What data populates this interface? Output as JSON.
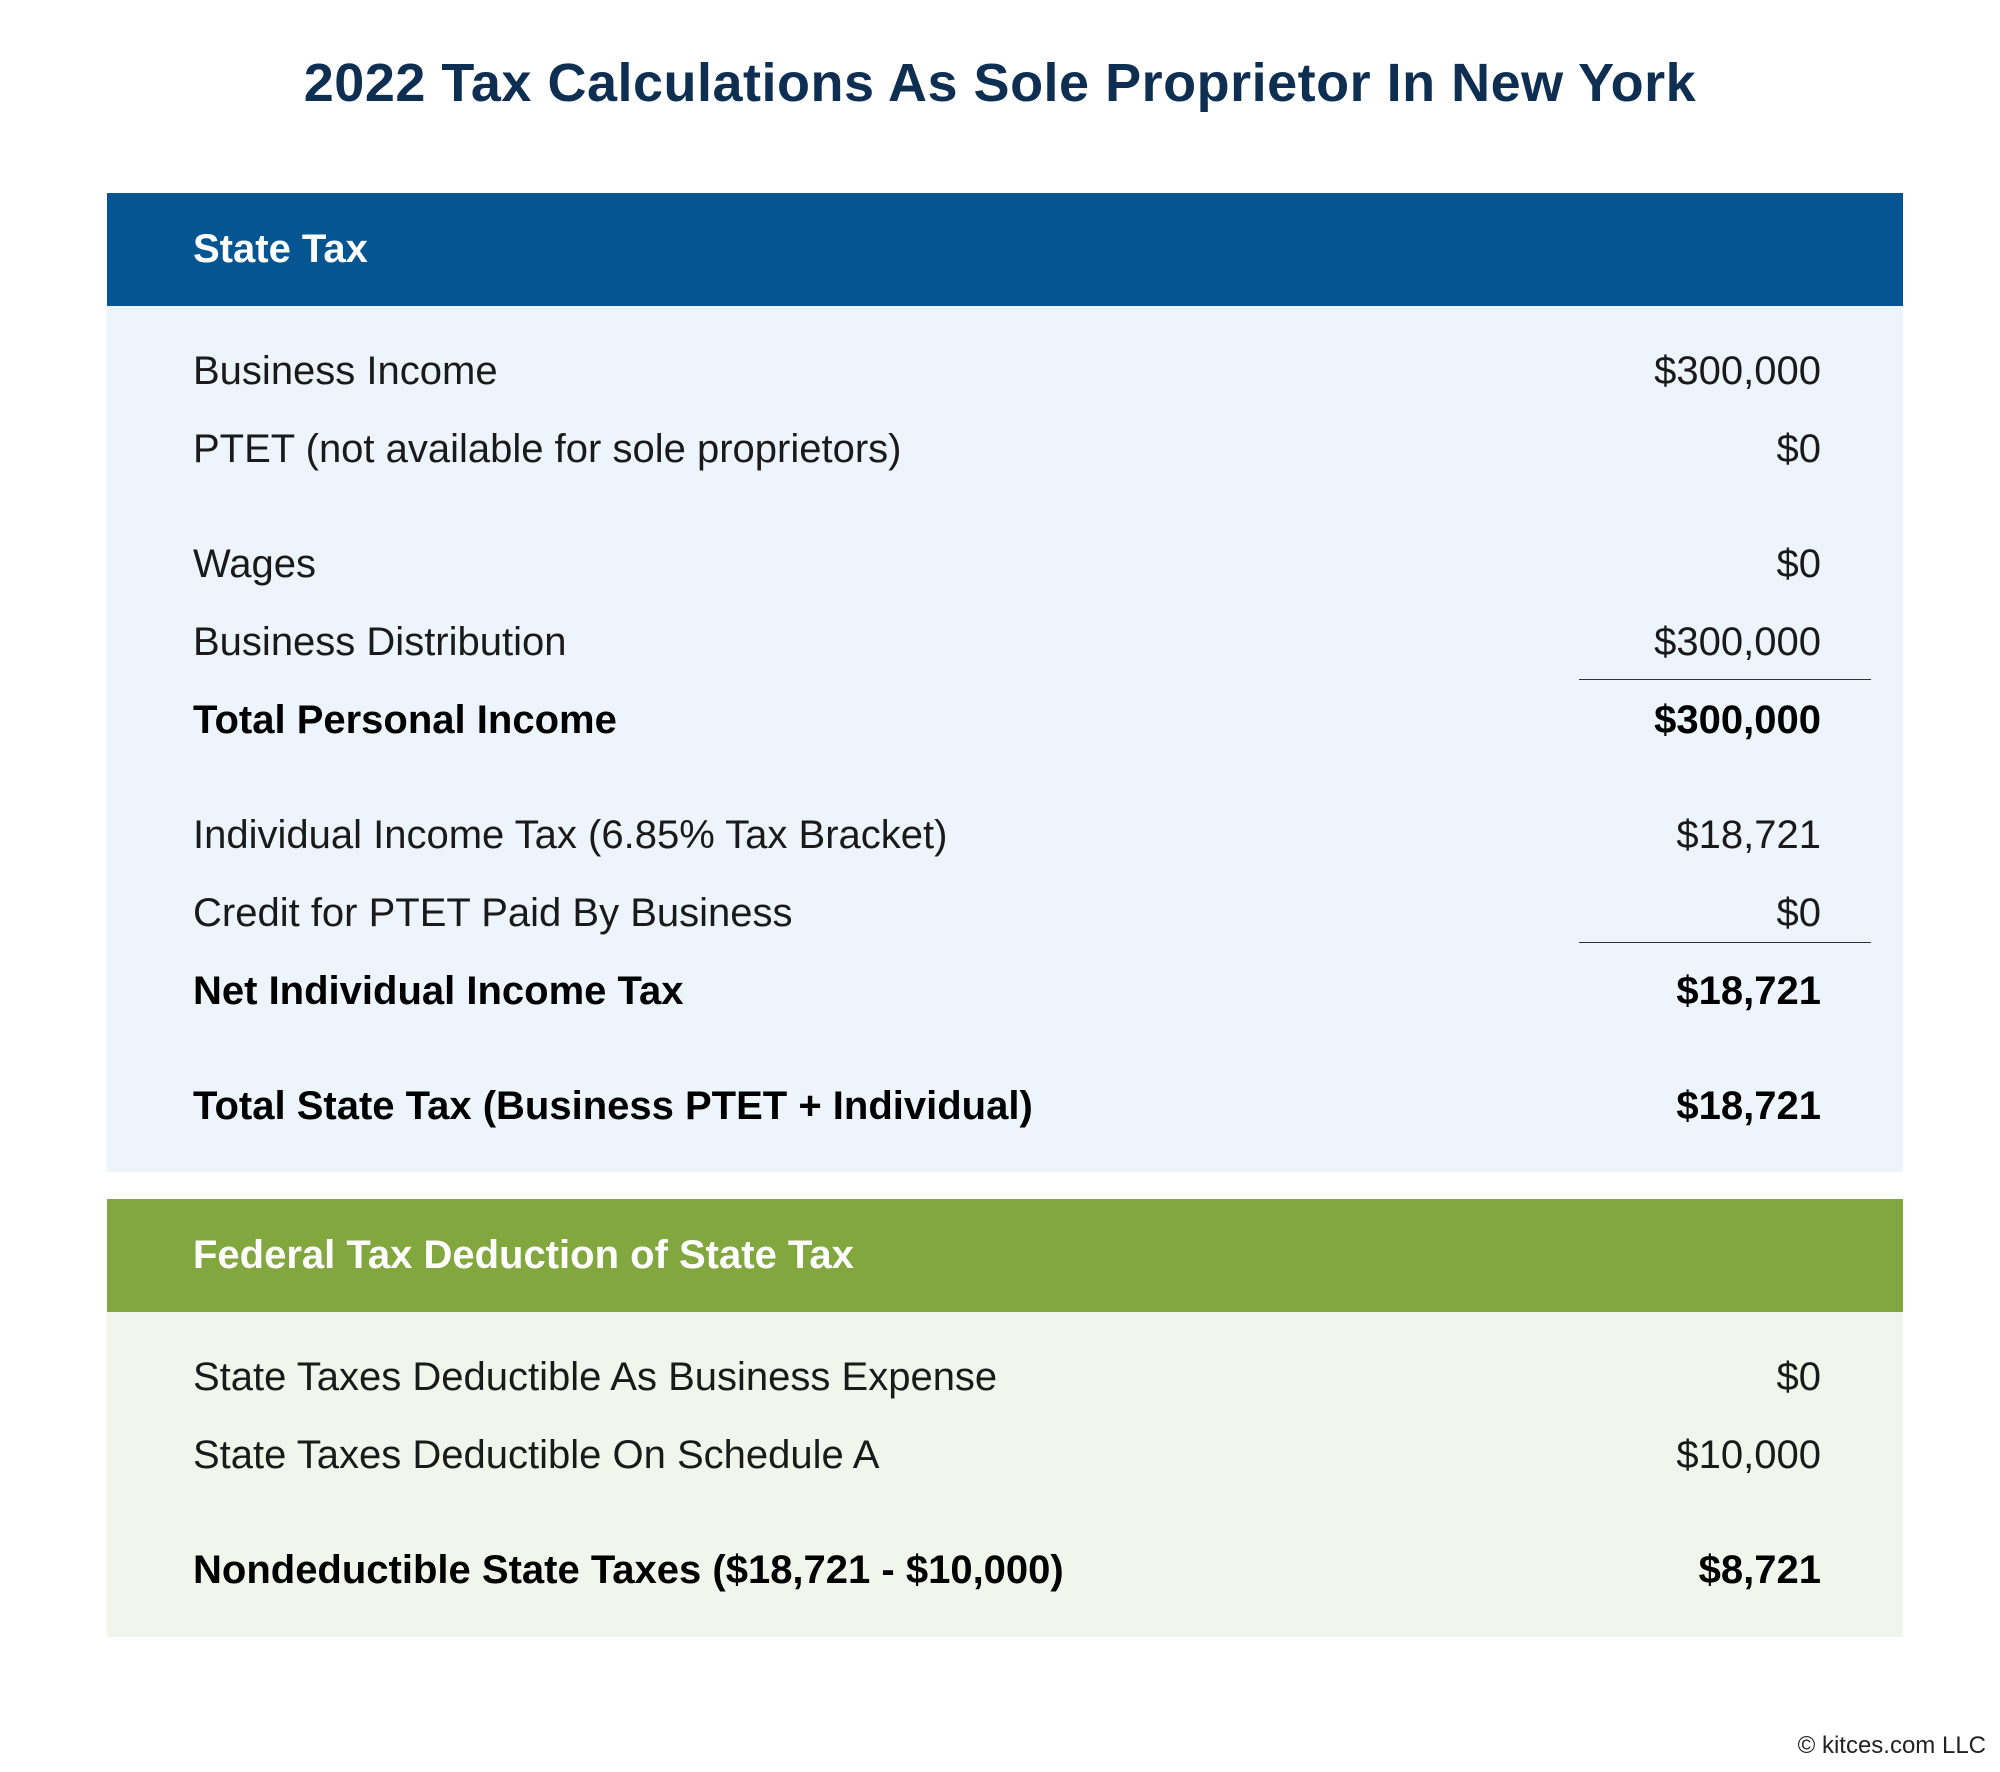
{
  "title": "2022 Tax Calculations As Sole Proprietor In New York",
  "state_tax": {
    "header": "State Tax",
    "rows": [
      {
        "label": "Business Income",
        "value": "$300,000"
      },
      {
        "label": "PTET (not available for sole proprietors)",
        "value": "$0"
      },
      {
        "label": "Wages",
        "value": "$0"
      },
      {
        "label": "Business Distribution",
        "value": "$300,000"
      },
      {
        "label": "Total Personal Income",
        "value": "$300,000"
      },
      {
        "label": "Individual Income Tax (6.85% Tax Bracket)",
        "value": "$18,721"
      },
      {
        "label": "Credit for PTET Paid By Business",
        "value": "$0"
      },
      {
        "label": "Net Individual Income Tax",
        "value": "$18,721"
      },
      {
        "label": "Total State Tax (Business PTET + Individual)",
        "value": "$18,721"
      }
    ]
  },
  "federal": {
    "header": "Federal Tax Deduction of State Tax",
    "rows": [
      {
        "label": "State Taxes Deductible As Business Expense",
        "value": "$0"
      },
      {
        "label": "State Taxes Deductible On Schedule A",
        "value": "$10,000"
      },
      {
        "label": "Nondeductible State Taxes ($18,721 - $10,000)",
        "value": "$8,721"
      }
    ]
  },
  "footer": "© kitces.com LLC",
  "colors": {
    "title": "#0e2e52",
    "state_header": "#065593",
    "state_body": "#edf4fb",
    "federal_header": "#82a73f",
    "federal_body": "#f2f5ec"
  }
}
